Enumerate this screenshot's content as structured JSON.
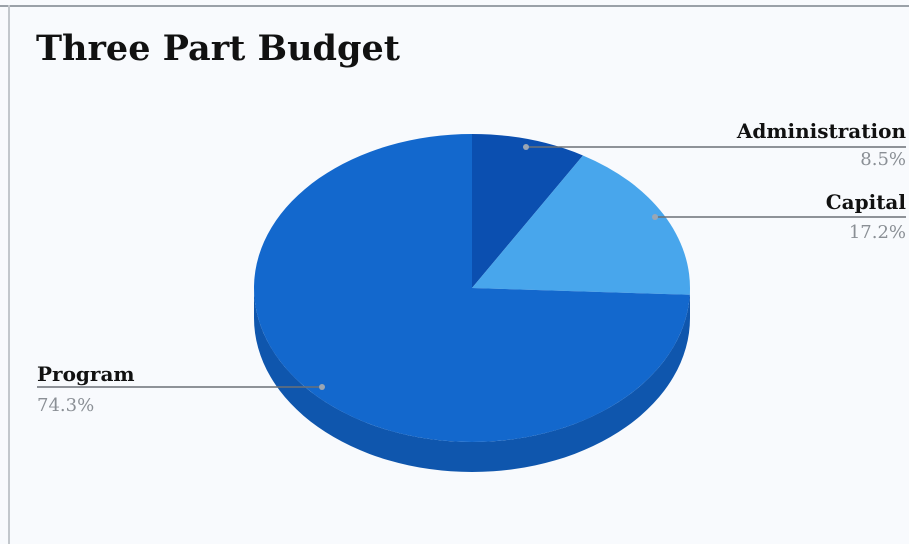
{
  "chart_data": {
    "type": "pie",
    "title": "Three Part Budget",
    "three_d": true,
    "legend": "none",
    "slices": [
      {
        "label": "Administration",
        "value": 8.5,
        "value_label": "8.5%",
        "color": "#0b4fb0"
      },
      {
        "label": "Capital",
        "value": 17.2,
        "value_label": "17.2%",
        "color": "#48a6ec"
      },
      {
        "label": "Program",
        "value": 74.3,
        "value_label": "74.3%",
        "color": "#1368cd"
      }
    ],
    "side_color": "#0f56ad"
  }
}
